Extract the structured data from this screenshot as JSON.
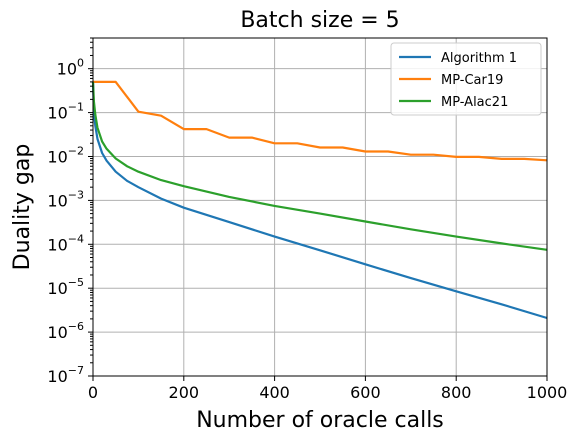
{
  "chart_data": {
    "type": "line",
    "title": "Batch size = 5",
    "xlabel": "Number of oracle calls",
    "ylabel": "Duality gap",
    "xlim": [
      0,
      1000
    ],
    "ylim": [
      1e-07,
      5
    ],
    "yscale": "log",
    "grid": true,
    "legend_placement": "top-right",
    "xticks": [
      {
        "value": 0,
        "label": "0"
      },
      {
        "value": 200,
        "label": "200"
      },
      {
        "value": 400,
        "label": "400"
      },
      {
        "value": 600,
        "label": "600"
      },
      {
        "value": 800,
        "label": "800"
      },
      {
        "value": 1000,
        "label": "1000"
      }
    ],
    "yticks": [
      {
        "value": 1,
        "base": "10",
        "exp": "0"
      },
      {
        "value": 0.1,
        "base": "10",
        "exp": "−1"
      },
      {
        "value": 0.01,
        "base": "10",
        "exp": "−2"
      },
      {
        "value": 0.001,
        "base": "10",
        "exp": "−3"
      },
      {
        "value": 0.0001,
        "base": "10",
        "exp": "−4"
      },
      {
        "value": 1e-05,
        "base": "10",
        "exp": "−5"
      },
      {
        "value": 1e-06,
        "base": "10",
        "exp": "−6"
      },
      {
        "value": 1e-07,
        "base": "10",
        "exp": "−7"
      }
    ],
    "series": [
      {
        "name": "Algorithm 1",
        "color": "#1f77b4",
        "x": [
          0,
          2,
          5,
          10,
          20,
          30,
          50,
          75,
          100,
          150,
          200,
          300,
          400,
          500,
          600,
          700,
          800,
          900,
          1000
        ],
        "y": [
          0.5,
          0.1,
          0.05,
          0.025,
          0.012,
          0.008,
          0.0045,
          0.0028,
          0.002,
          0.0011,
          0.00068,
          0.00032,
          0.00015,
          7.3e-05,
          3.5e-05,
          1.7e-05,
          8.5e-06,
          4.3e-06,
          2.1e-06
        ]
      },
      {
        "name": "MP-Car19",
        "color": "#ff7f0e",
        "x": [
          0,
          50,
          100,
          150,
          200,
          250,
          300,
          350,
          400,
          450,
          500,
          550,
          600,
          650,
          700,
          750,
          800,
          850,
          900,
          950,
          1000
        ],
        "y": [
          0.5,
          0.5,
          0.105,
          0.085,
          0.042,
          0.042,
          0.027,
          0.027,
          0.02,
          0.02,
          0.016,
          0.016,
          0.013,
          0.013,
          0.011,
          0.011,
          0.0098,
          0.0098,
          0.0088,
          0.0088,
          0.0082
        ]
      },
      {
        "name": "MP-Alac21",
        "color": "#2ca02c",
        "x": [
          0,
          2,
          5,
          10,
          20,
          30,
          50,
          75,
          100,
          150,
          200,
          300,
          400,
          500,
          600,
          700,
          800,
          900,
          1000
        ],
        "y": [
          0.5,
          0.18,
          0.09,
          0.045,
          0.022,
          0.015,
          0.009,
          0.006,
          0.0045,
          0.0029,
          0.0021,
          0.0012,
          0.00075,
          0.0005,
          0.00033,
          0.00022,
          0.00015,
          0.000105,
          7.5e-05
        ]
      }
    ]
  }
}
